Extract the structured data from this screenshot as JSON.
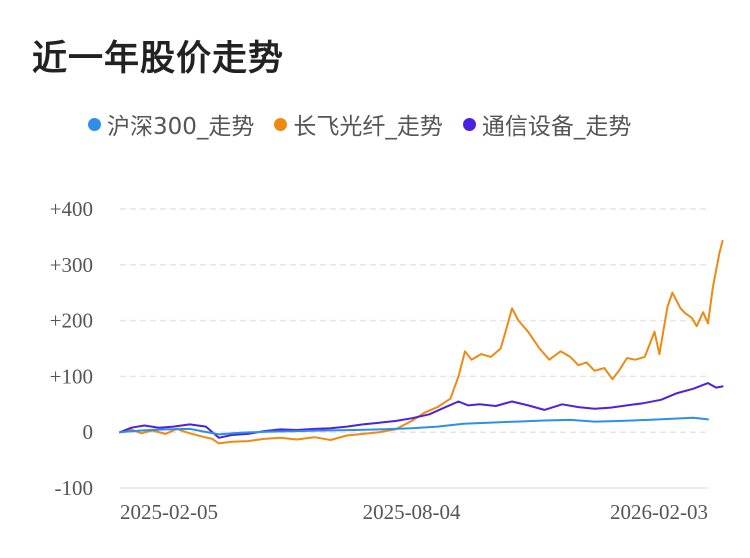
{
  "title": "近一年股价走势",
  "colors": {
    "hs300": "#2f8fe8",
    "cf": "#ee8a12",
    "tx": "#4a22e0",
    "grid": "#e6e6e6"
  },
  "chart_data": {
    "type": "line",
    "xlim": [
      "2025-02-05",
      "2026-02-03"
    ],
    "xticks": [
      "2025-02-05",
      "2025-08-04",
      "2026-02-03"
    ],
    "ylim": [
      -100,
      400
    ],
    "yticks": [
      {
        "value": 400,
        "label": "+400"
      },
      {
        "value": 300,
        "label": "+300"
      },
      {
        "value": 200,
        "label": "+200"
      },
      {
        "value": 100,
        "label": "+100"
      },
      {
        "value": 0,
        "label": "0"
      },
      {
        "value": -100,
        "label": "-100"
      }
    ],
    "grid": true,
    "legend_position": "top",
    "series": [
      {
        "name": "沪深300_走势",
        "color_key": "hs300",
        "points": [
          [
            "2025-02-05",
            0
          ],
          [
            "2025-02-18",
            3
          ],
          [
            "2025-03-05",
            5
          ],
          [
            "2025-03-20",
            6
          ],
          [
            "2025-04-07",
            -4
          ],
          [
            "2025-04-20",
            -1
          ],
          [
            "2025-05-08",
            1
          ],
          [
            "2025-05-25",
            2
          ],
          [
            "2025-06-10",
            3
          ],
          [
            "2025-06-30",
            4
          ],
          [
            "2025-07-15",
            5
          ],
          [
            "2025-08-04",
            7
          ],
          [
            "2025-08-20",
            10
          ],
          [
            "2025-09-05",
            15
          ],
          [
            "2025-09-20",
            17
          ],
          [
            "2025-10-08",
            19
          ],
          [
            "2025-10-25",
            21
          ],
          [
            "2025-11-10",
            22
          ],
          [
            "2025-11-25",
            19
          ],
          [
            "2025-12-10",
            20
          ],
          [
            "2025-12-28",
            22
          ],
          [
            "2026-01-12",
            24
          ],
          [
            "2026-01-25",
            26
          ],
          [
            "2026-02-03",
            23
          ]
        ]
      },
      {
        "name": "长飞光纤_走势",
        "color_key": "cf",
        "points": [
          [
            "2025-02-05",
            0
          ],
          [
            "2025-02-12",
            5
          ],
          [
            "2025-02-18",
            -2
          ],
          [
            "2025-02-25",
            3
          ],
          [
            "2025-03-05",
            -3
          ],
          [
            "2025-03-12",
            6
          ],
          [
            "2025-03-20",
            -2
          ],
          [
            "2025-03-28",
            -8
          ],
          [
            "2025-04-03",
            -12
          ],
          [
            "2025-04-07",
            -20
          ],
          [
            "2025-04-15",
            -17
          ],
          [
            "2025-04-25",
            -16
          ],
          [
            "2025-05-05",
            -12
          ],
          [
            "2025-05-15",
            -10
          ],
          [
            "2025-05-25",
            -13
          ],
          [
            "2025-06-05",
            -9
          ],
          [
            "2025-06-15",
            -14
          ],
          [
            "2025-06-25",
            -6
          ],
          [
            "2025-07-05",
            -3
          ],
          [
            "2025-07-15",
            0
          ],
          [
            "2025-07-25",
            5
          ],
          [
            "2025-08-04",
            20
          ],
          [
            "2025-08-12",
            35
          ],
          [
            "2025-08-20",
            45
          ],
          [
            "2025-08-28",
            60
          ],
          [
            "2025-09-02",
            100
          ],
          [
            "2025-09-06",
            145
          ],
          [
            "2025-09-10",
            130
          ],
          [
            "2025-09-16",
            140
          ],
          [
            "2025-09-22",
            135
          ],
          [
            "2025-09-28",
            150
          ],
          [
            "2025-10-02",
            190
          ],
          [
            "2025-10-05",
            222
          ],
          [
            "2025-10-09",
            200
          ],
          [
            "2025-10-15",
            180
          ],
          [
            "2025-10-22",
            150
          ],
          [
            "2025-10-28",
            130
          ],
          [
            "2025-11-04",
            145
          ],
          [
            "2025-11-10",
            135
          ],
          [
            "2025-11-15",
            120
          ],
          [
            "2025-11-20",
            125
          ],
          [
            "2025-11-25",
            110
          ],
          [
            "2025-12-01",
            115
          ],
          [
            "2025-12-06",
            95
          ],
          [
            "2025-12-10",
            110
          ],
          [
            "2025-12-15",
            133
          ],
          [
            "2025-12-20",
            130
          ],
          [
            "2025-12-26",
            135
          ],
          [
            "2026-01-01",
            180
          ],
          [
            "2026-01-04",
            140
          ],
          [
            "2026-01-09",
            225
          ],
          [
            "2026-01-12",
            250
          ],
          [
            "2026-01-17",
            222
          ],
          [
            "2026-01-20",
            213
          ],
          [
            "2026-01-24",
            205
          ],
          [
            "2026-01-27",
            190
          ],
          [
            "2026-01-31",
            215
          ],
          [
            "2026-02-03",
            195
          ],
          [
            "2026-02-06",
            260
          ],
          [
            "2026-02-10",
            320
          ],
          [
            "2026-02-12",
            343
          ]
        ]
      },
      {
        "name": "通信设备_走势",
        "color_key": "tx",
        "points": [
          [
            "2025-02-05",
            0
          ],
          [
            "2025-02-12",
            8
          ],
          [
            "2025-02-20",
            12
          ],
          [
            "2025-03-01",
            8
          ],
          [
            "2025-03-10",
            10
          ],
          [
            "2025-03-20",
            14
          ],
          [
            "2025-03-30",
            10
          ],
          [
            "2025-04-07",
            -10
          ],
          [
            "2025-04-15",
            -5
          ],
          [
            "2025-04-25",
            -3
          ],
          [
            "2025-05-05",
            2
          ],
          [
            "2025-05-15",
            5
          ],
          [
            "2025-05-25",
            4
          ],
          [
            "2025-06-05",
            6
          ],
          [
            "2025-06-15",
            7
          ],
          [
            "2025-06-25",
            10
          ],
          [
            "2025-07-05",
            14
          ],
          [
            "2025-07-15",
            17
          ],
          [
            "2025-07-25",
            20
          ],
          [
            "2025-08-04",
            25
          ],
          [
            "2025-08-15",
            32
          ],
          [
            "2025-08-25",
            45
          ],
          [
            "2025-09-02",
            55
          ],
          [
            "2025-09-08",
            48
          ],
          [
            "2025-09-15",
            50
          ],
          [
            "2025-09-25",
            47
          ],
          [
            "2025-10-05",
            55
          ],
          [
            "2025-10-15",
            48
          ],
          [
            "2025-10-25",
            40
          ],
          [
            "2025-11-05",
            50
          ],
          [
            "2025-11-15",
            45
          ],
          [
            "2025-11-25",
            42
          ],
          [
            "2025-12-05",
            44
          ],
          [
            "2025-12-15",
            48
          ],
          [
            "2025-12-25",
            52
          ],
          [
            "2026-01-05",
            58
          ],
          [
            "2026-01-15",
            70
          ],
          [
            "2026-01-25",
            78
          ],
          [
            "2026-02-03",
            88
          ],
          [
            "2026-02-08",
            80
          ],
          [
            "2026-02-12",
            82
          ]
        ]
      }
    ]
  }
}
